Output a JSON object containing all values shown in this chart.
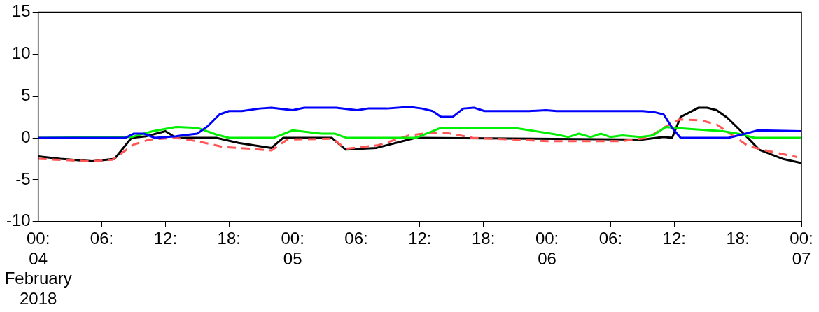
{
  "chart_data": {
    "type": "line",
    "xlim": [
      "2018-02-04T00:00",
      "2018-02-07T00:00"
    ],
    "xticks": [
      {
        "value": "2018-02-04T00:00",
        "label": "00:\n04\nFebruary\n2018"
      },
      {
        "value": "2018-02-04T06:00",
        "label": "06:"
      },
      {
        "value": "2018-02-04T12:00",
        "label": "12:"
      },
      {
        "value": "2018-02-04T18:00",
        "label": "18:"
      },
      {
        "value": "2018-02-05T00:00",
        "label": "00:\n05"
      },
      {
        "value": "2018-02-05T06:00",
        "label": "06:"
      },
      {
        "value": "2018-02-05T12:00",
        "label": "12:"
      },
      {
        "value": "2018-02-05T18:00",
        "label": "18:"
      },
      {
        "value": "2018-02-06T00:00",
        "label": "00:\n06"
      },
      {
        "value": "2018-02-06T06:00",
        "label": "06:"
      },
      {
        "value": "2018-02-06T12:00",
        "label": "12:"
      },
      {
        "value": "2018-02-06T18:00",
        "label": "18:"
      },
      {
        "value": "2018-02-07T00:00",
        "label": "00:\n07"
      }
    ],
    "ylim": [
      -10,
      15
    ],
    "yticks": [
      -10,
      -5,
      0,
      5,
      10,
      15
    ],
    "grid": false,
    "legend": false,
    "marker": "none",
    "series": [
      {
        "color": "#0000ff",
        "line_style": "solid",
        "x": [
          "2018-02-04T00:00",
          "2018-02-04T08:12",
          "2018-02-04T09:00",
          "2018-02-04T10:00",
          "2018-02-04T11:00",
          "2018-02-04T13:00",
          "2018-02-04T15:00",
          "2018-02-04T16:00",
          "2018-02-04T17:06",
          "2018-02-04T18:00",
          "2018-02-04T19:12",
          "2018-02-04T20:54",
          "2018-02-04T22:00",
          "2018-02-05T00:00",
          "2018-02-05T01:06",
          "2018-02-05T04:06",
          "2018-02-05T06:06",
          "2018-02-05T07:06",
          "2018-02-05T08:54",
          "2018-02-05T11:00",
          "2018-02-05T12:12",
          "2018-02-05T13:12",
          "2018-02-05T14:00",
          "2018-02-05T15:06",
          "2018-02-05T16:06",
          "2018-02-05T17:06",
          "2018-02-05T18:06",
          "2018-02-05T22:18",
          "2018-02-05T23:54",
          "2018-02-06T00:54",
          "2018-02-06T09:00",
          "2018-02-06T10:00",
          "2018-02-06T11:00",
          "2018-02-06T11:48",
          "2018-02-06T12:36",
          "2018-02-06T17:06",
          "2018-02-06T19:00",
          "2018-02-06T19:54",
          "2018-02-07T00:00"
        ],
        "values": [
          0,
          0,
          0.5,
          0.5,
          0,
          0.2,
          0.5,
          1.4,
          2.8,
          3.2,
          3.2,
          3.5,
          3.6,
          3.3,
          3.6,
          3.6,
          3.3,
          3.5,
          3.5,
          3.7,
          3.5,
          3.2,
          2.5,
          2.5,
          3.5,
          3.6,
          3.2,
          3.2,
          3.3,
          3.2,
          3.2,
          3.1,
          2.8,
          1.2,
          0,
          0,
          0.6,
          0.9,
          0.8
        ]
      },
      {
        "color": "#00ee00",
        "line_style": "solid",
        "x": [
          "2018-02-04T00:00",
          "2018-02-04T08:48",
          "2018-02-04T10:48",
          "2018-02-04T13:00",
          "2018-02-04T15:00",
          "2018-02-04T16:48",
          "2018-02-04T18:00",
          "2018-02-04T22:12",
          "2018-02-05T00:00",
          "2018-02-05T02:42",
          "2018-02-05T04:00",
          "2018-02-05T05:06",
          "2018-02-05T11:36",
          "2018-02-05T14:00",
          "2018-02-05T16:54",
          "2018-02-05T20:54",
          "2018-02-06T00:54",
          "2018-02-06T02:00",
          "2018-02-06T03:00",
          "2018-02-06T04:06",
          "2018-02-06T05:06",
          "2018-02-06T06:00",
          "2018-02-06T07:06",
          "2018-02-06T08:48",
          "2018-02-06T10:00",
          "2018-02-06T11:12",
          "2018-02-06T12:00",
          "2018-02-06T16:36",
          "2018-02-06T18:00",
          "2018-02-06T19:36",
          "2018-02-07T00:00"
        ],
        "values": [
          0,
          0.1,
          0.8,
          1.3,
          1.2,
          0.4,
          0,
          0,
          0.9,
          0.5,
          0.5,
          0,
          0,
          1.2,
          1.2,
          1.2,
          0.4,
          0.1,
          0.5,
          0.1,
          0.5,
          0.1,
          0.3,
          0.1,
          0.3,
          1.3,
          1.2,
          0.8,
          0.5,
          0,
          0
        ]
      },
      {
        "color": "#ff5555",
        "line_style": "dashed",
        "x": [
          "2018-02-04T00:00",
          "2018-02-04T05:00",
          "2018-02-04T07:00",
          "2018-02-04T09:00",
          "2018-02-04T10:30",
          "2018-02-04T13:00",
          "2018-02-04T15:00",
          "2018-02-04T17:30",
          "2018-02-04T20:00",
          "2018-02-04T22:00",
          "2018-02-04T23:30",
          "2018-02-05T03:48",
          "2018-02-05T05:00",
          "2018-02-05T08:00",
          "2018-02-05T11:00",
          "2018-02-05T13:00",
          "2018-02-05T14:30",
          "2018-02-05T17:00",
          "2018-02-05T21:00",
          "2018-02-06T00:00",
          "2018-02-06T02:42",
          "2018-02-06T07:00",
          "2018-02-06T09:30",
          "2018-02-06T11:00",
          "2018-02-06T12:30",
          "2018-02-06T14:30",
          "2018-02-06T16:00",
          "2018-02-06T17:30",
          "2018-02-06T19:00",
          "2018-02-06T21:00",
          "2018-02-06T23:36"
        ],
        "values": [
          -2.5,
          -2.8,
          -2.6,
          -0.8,
          -0.2,
          0,
          -0.4,
          -1.1,
          -1.3,
          -1.5,
          -0.2,
          -0.1,
          -1.3,
          -0.9,
          0.3,
          0.6,
          0.6,
          0,
          -0.2,
          -0.4,
          -0.4,
          -0.4,
          0,
          1.2,
          2.2,
          2.1,
          1.6,
          0.3,
          -1,
          -1.6,
          -2.3
        ]
      },
      {
        "color": "#000000",
        "line_style": "solid",
        "x": [
          "2018-02-04T00:00",
          "2018-02-04T02:06",
          "2018-02-04T05:06",
          "2018-02-04T07:12",
          "2018-02-04T08:48",
          "2018-02-04T10:12",
          "2018-02-04T12:00",
          "2018-02-04T13:00",
          "2018-02-04T16:48",
          "2018-02-04T18:54",
          "2018-02-04T20:54",
          "2018-02-04T22:00",
          "2018-02-04T23:06",
          "2018-02-05T03:42",
          "2018-02-05T05:00",
          "2018-02-05T07:54",
          "2018-02-05T11:36",
          "2018-02-06T09:00",
          "2018-02-06T11:00",
          "2018-02-06T11:48",
          "2018-02-06T12:36",
          "2018-02-06T14:18",
          "2018-02-06T15:06",
          "2018-02-06T16:00",
          "2018-02-06T17:00",
          "2018-02-06T18:18",
          "2018-02-06T19:06",
          "2018-02-06T20:00",
          "2018-02-06T22:12",
          "2018-02-07T00:00"
        ],
        "values": [
          -2.2,
          -2.5,
          -2.8,
          -2.5,
          0,
          0.2,
          0.8,
          0,
          0,
          -0.6,
          -1,
          -1.2,
          0,
          0,
          -1.4,
          -1.2,
          0,
          -0.2,
          0.1,
          0,
          2.5,
          3.6,
          3.6,
          3.3,
          2.4,
          0.8,
          -0.2,
          -1.4,
          -2.5,
          -3
        ]
      }
    ]
  }
}
